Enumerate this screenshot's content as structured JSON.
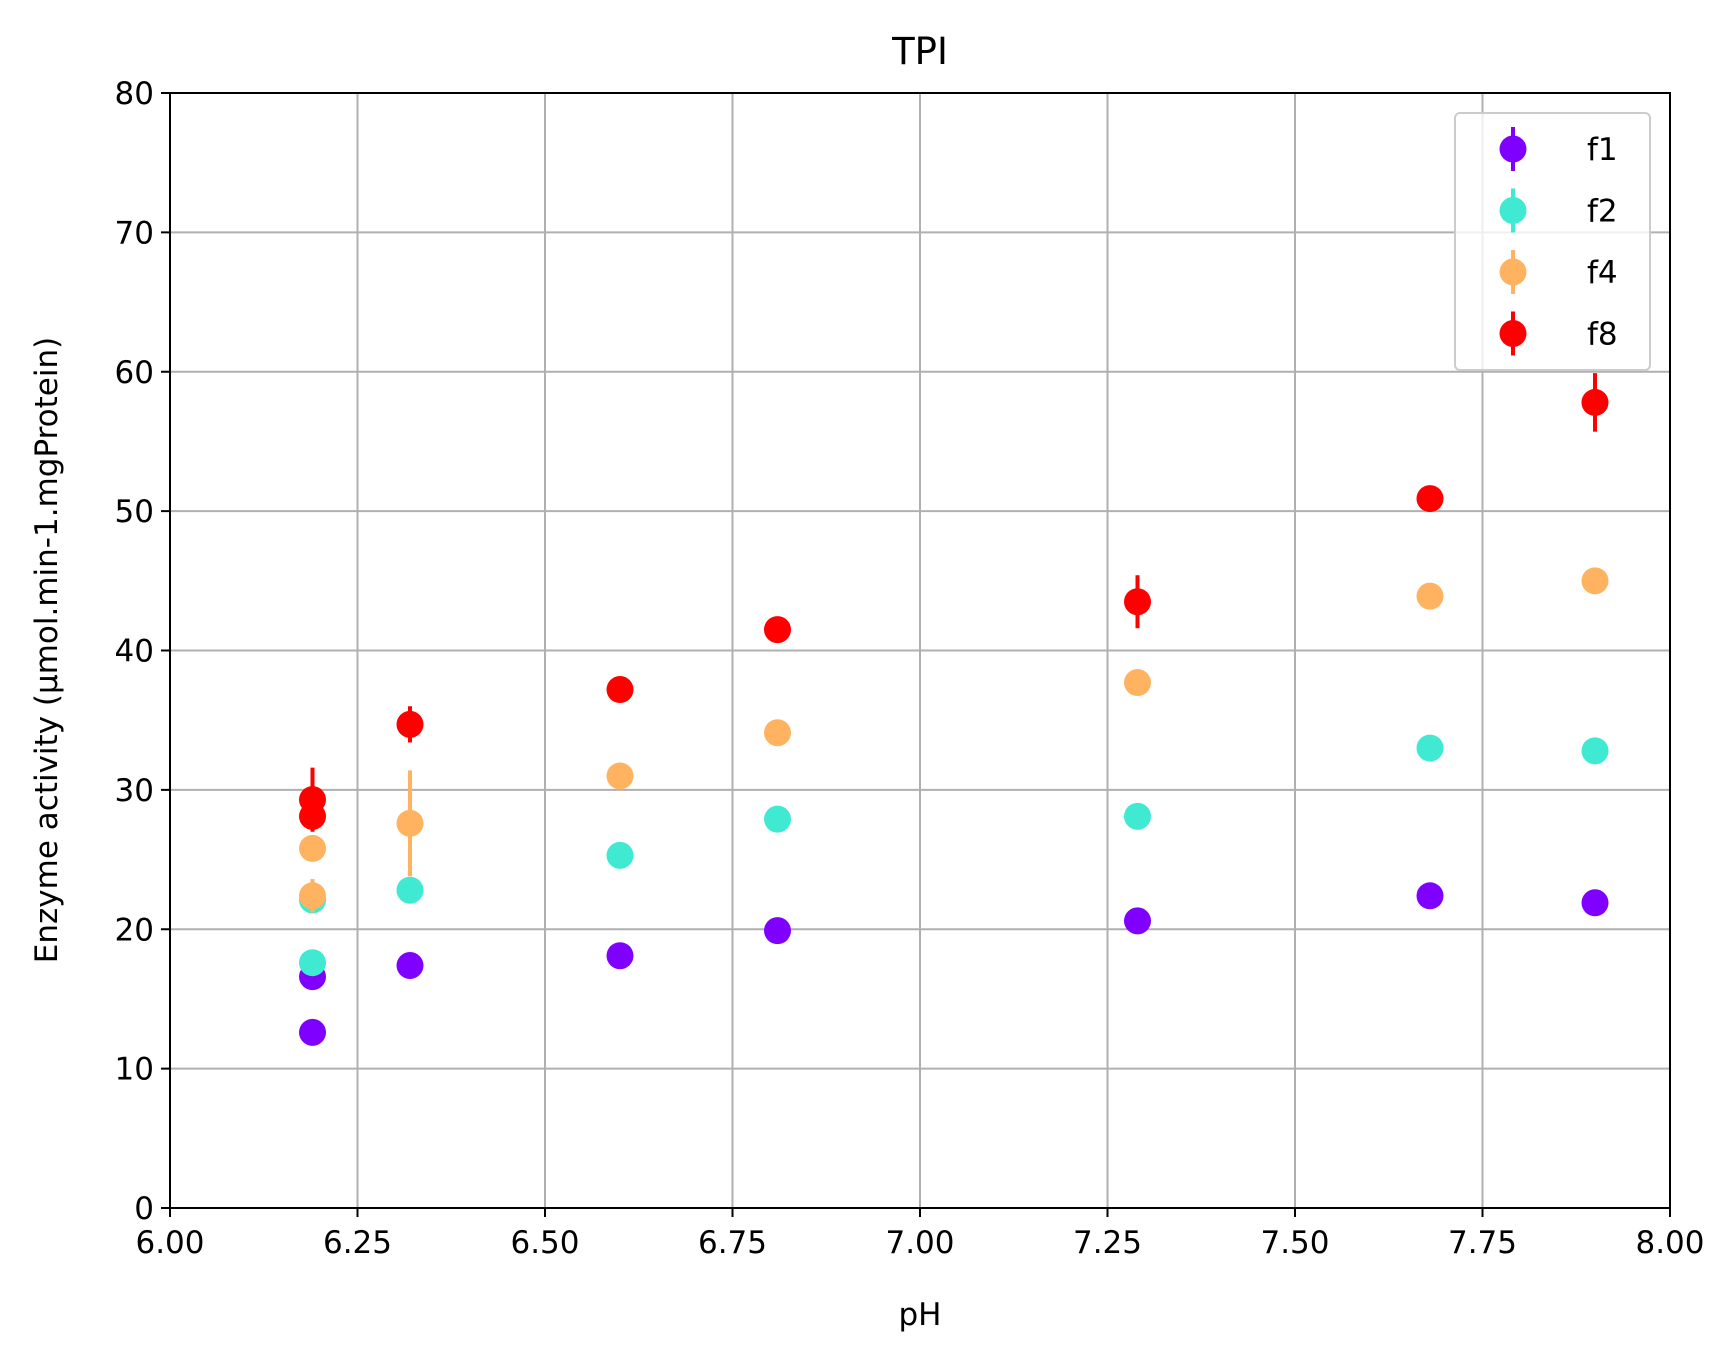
{
  "chart_data": {
    "type": "scatter",
    "title": "TPI",
    "xlabel": "pH",
    "ylabel": "Enzyme activity (µmol.min-1.mgProtein)",
    "xlim": [
      6.0,
      8.0
    ],
    "ylim": [
      0,
      80
    ],
    "xticks": [
      "6.00",
      "6.25",
      "6.50",
      "6.75",
      "7.00",
      "7.25",
      "7.50",
      "7.75",
      "8.00"
    ],
    "yticks": [
      "0",
      "10",
      "20",
      "30",
      "40",
      "50",
      "60",
      "70",
      "80"
    ],
    "grid": true,
    "legend_position": "top-right",
    "series": [
      {
        "name": "f1",
        "color": "#8000ff",
        "x": [
          6.19,
          6.19,
          6.32,
          6.6,
          6.81,
          7.29,
          7.68,
          7.9
        ],
        "y": [
          12.6,
          16.6,
          17.4,
          18.1,
          19.9,
          20.6,
          22.4,
          21.9
        ],
        "err": [
          0.3,
          0.3,
          0.3,
          0.3,
          0.3,
          0.3,
          0.3,
          0.3
        ]
      },
      {
        "name": "f2",
        "color": "#40ead2",
        "x": [
          6.19,
          6.19,
          6.32,
          6.6,
          6.81,
          7.29,
          7.68,
          7.9
        ],
        "y": [
          17.6,
          22.1,
          22.8,
          25.3,
          27.9,
          28.1,
          33.0,
          32.8
        ],
        "err": [
          0.3,
          0.3,
          0.3,
          0.3,
          0.3,
          0.3,
          0.3,
          0.3
        ]
      },
      {
        "name": "f4",
        "color": "#ffb360",
        "x": [
          6.19,
          6.19,
          6.32,
          6.6,
          6.81,
          7.29,
          7.68,
          7.9
        ],
        "y": [
          22.4,
          25.8,
          27.6,
          31.0,
          34.1,
          37.7,
          43.9,
          45.0
        ],
        "err": [
          1.2,
          0.4,
          3.8,
          0.4,
          0.4,
          0.4,
          0.4,
          0.4
        ]
      },
      {
        "name": "f8",
        "color": "#ff0000",
        "x": [
          6.19,
          6.19,
          6.32,
          6.6,
          6.81,
          7.29,
          7.68,
          7.9
        ],
        "y": [
          28.1,
          29.3,
          34.7,
          37.2,
          41.5,
          43.5,
          50.9,
          57.8
        ],
        "err": [
          0.5,
          2.3,
          1.3,
          0.4,
          0.4,
          1.9,
          0.4,
          2.1
        ]
      }
    ]
  }
}
